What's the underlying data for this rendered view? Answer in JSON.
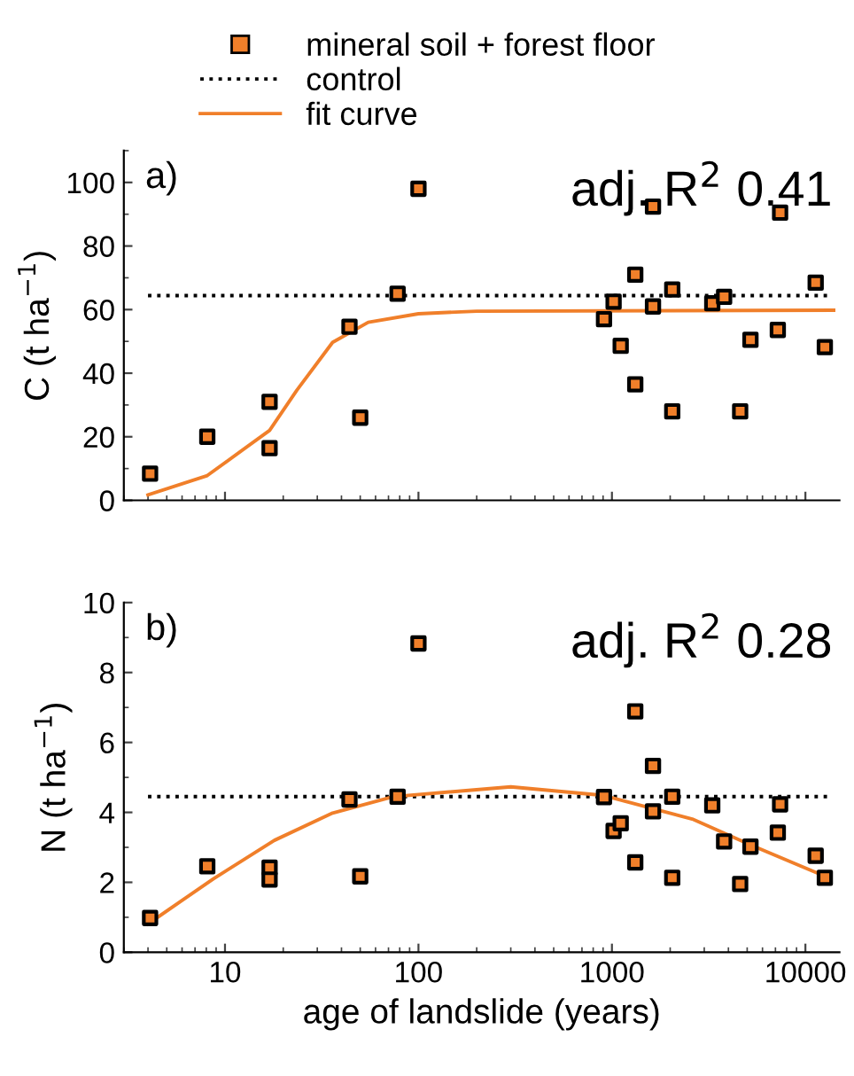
{
  "chart_data": [
    {
      "type": "scatter",
      "ylabel": "C (t ha$^{−1}$)",
      "annotations": [
        "a)",
        "adj. R$^{2}$ 0.41"
      ],
      "xlim": [
        3,
        15000
      ],
      "ylim": [
        0,
        110
      ],
      "yticks": [
        0,
        20,
        40,
        60,
        80,
        100
      ],
      "log": "x",
      "tick_labels": "y",
      "legend": "top",
      "grid": false,
      "marker": "square",
      "series": [
        {
          "name": "mineral soil + forest floor",
          "color": "#f07f2a",
          "x": [
            4.1,
            8.1,
            17,
            17,
            44,
            50,
            78,
            100,
            910,
            1020,
            1110,
            1320,
            1320,
            1630,
            1630,
            2050,
            2050,
            3300,
            3800,
            4600,
            5200,
            7200,
            7400,
            11300,
            12600
          ],
          "values": [
            8.4,
            20,
            31,
            16.4,
            54.6,
            26,
            65,
            98,
            57,
            62.5,
            48.6,
            71,
            36.5,
            92.4,
            61,
            66.3,
            28,
            62,
            64,
            28,
            50.5,
            53.6,
            90.5,
            68.5,
            48.2
          ]
        },
        {
          "name": "control",
          "type": "line",
          "color": "#000000",
          "line_style": "dotted",
          "marker": "none",
          "x": [
            4,
            13000
          ],
          "values": [
            64.4,
            64.4
          ]
        },
        {
          "name": "fit curve",
          "type": "line",
          "color": "#f07f2a",
          "line_style": "solid",
          "marker": "none",
          "x": [
            4,
            8.1,
            17,
            23.5,
            36,
            55,
            100,
            200,
            14000
          ],
          "values": [
            1.7,
            7.8,
            22,
            34.6,
            49.7,
            56,
            58.7,
            59.5,
            59.8
          ]
        }
      ]
    },
    {
      "type": "scatter",
      "xlabel": "age of landslide (years)",
      "ylabel": "N (t ha$^{−1}$)",
      "annotations": [
        "b)",
        "adj. R$^{2}$ 0.28"
      ],
      "xlim": [
        3,
        15000
      ],
      "xticks": [
        10,
        100,
        1000,
        10000
      ],
      "ylim": [
        0,
        10
      ],
      "yticks": [
        0,
        2,
        4,
        6,
        8,
        10
      ],
      "log": "x",
      "grid": false,
      "legend": false,
      "marker": "square",
      "series": [
        {
          "color": "#f07f2a",
          "x": [
            4.1,
            8.1,
            17,
            17,
            44,
            50,
            78,
            100,
            910,
            1020,
            1110,
            1320,
            1320,
            1630,
            1630,
            2050,
            2050,
            3300,
            3800,
            4600,
            5200,
            7200,
            7400,
            11300,
            12600
          ],
          "values": [
            0.98,
            2.46,
            2.42,
            2.08,
            4.37,
            2.17,
            4.45,
            8.83,
            4.44,
            3.47,
            3.69,
            6.89,
            2.57,
            5.33,
            4.03,
            4.45,
            2.13,
            4.2,
            3.17,
            1.95,
            3.02,
            3.42,
            4.23,
            2.76,
            2.13
          ]
        },
        {
          "type": "line",
          "color": "#000000",
          "line_style": "dotted",
          "marker": "none",
          "x": [
            4,
            13000
          ],
          "values": [
            4.45,
            4.45
          ]
        },
        {
          "type": "line",
          "color": "#f07f2a",
          "line_style": "solid",
          "marker": "none",
          "x": [
            4,
            8.7,
            18,
            36,
            74,
            300,
            890,
            2600,
            5300,
            13300
          ],
          "values": [
            0.81,
            2.1,
            3.2,
            3.98,
            4.45,
            4.73,
            4.49,
            3.81,
            3.05,
            2.12
          ]
        }
      ]
    }
  ]
}
